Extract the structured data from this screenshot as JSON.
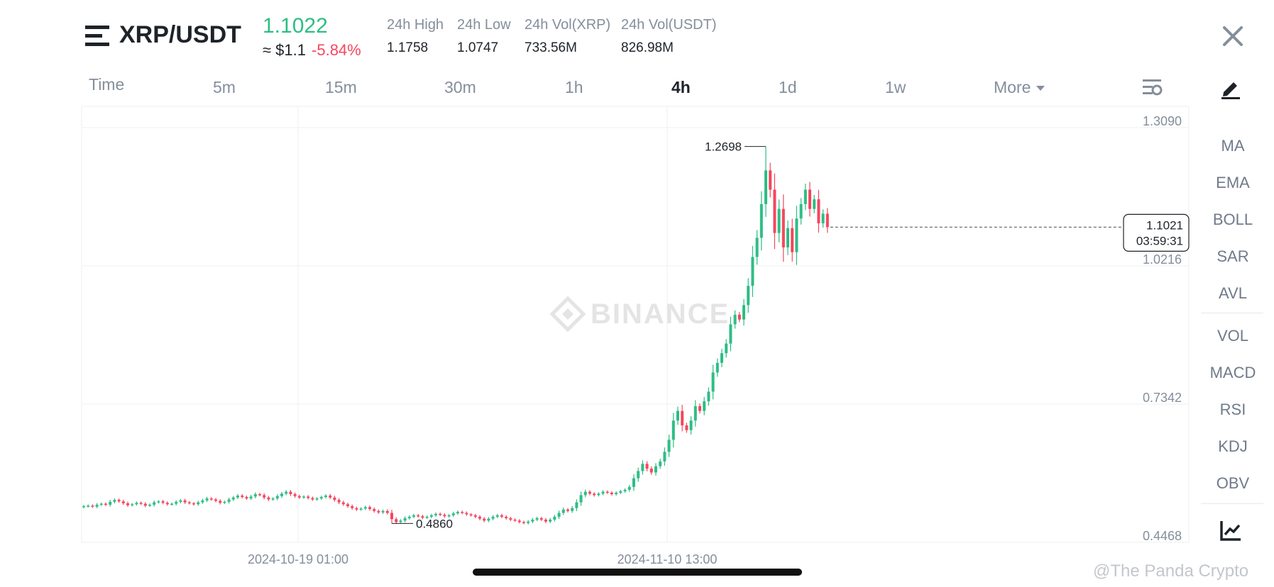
{
  "header": {
    "pair": "XRP/USDT",
    "last_price": "1.1022",
    "approx_usd": "≈ $1.1",
    "change_pct": "-5.84%",
    "stats": [
      {
        "label": "24h High",
        "value": "1.1758"
      },
      {
        "label": "24h Low",
        "value": "1.0747"
      },
      {
        "label": "24h Vol(XRP)",
        "value": "733.56M"
      },
      {
        "label": "24h Vol(USDT)",
        "value": "826.98M"
      }
    ]
  },
  "timeframes": [
    {
      "label": "Time",
      "active": false
    },
    {
      "label": "5m",
      "active": false
    },
    {
      "label": "15m",
      "active": false
    },
    {
      "label": "30m",
      "active": false
    },
    {
      "label": "1h",
      "active": false
    },
    {
      "label": "4h",
      "active": true
    },
    {
      "label": "1d",
      "active": false
    },
    {
      "label": "1w",
      "active": false
    },
    {
      "label": "More",
      "active": false
    }
  ],
  "indicators": {
    "main": [
      "MA",
      "EMA",
      "BOLL",
      "SAR",
      "AVL"
    ],
    "sub": [
      "VOL",
      "MACD",
      "RSI",
      "KDJ",
      "OBV"
    ]
  },
  "icons": {
    "menu": "menu-icon",
    "close": "close-icon",
    "settings": "chart-settings-icon",
    "draw": "drawing-tool-icon",
    "chart_type": "chart-type-icon",
    "watermark": "binance-logo-icon"
  },
  "colors": {
    "up": "#2ebd85",
    "down": "#f6465d",
    "grid": "#eef0f2",
    "text_muted": "#848e9c"
  },
  "chart_data": {
    "type": "candlestick",
    "interval": "4h",
    "y_ticks": [
      "1.3090",
      "1.0216",
      "0.7342",
      "0.4468"
    ],
    "x_ticks": [
      "2024-10-19 01:00",
      "2024-11-10 13:00"
    ],
    "ylim": [
      0.4468,
      1.309
    ],
    "high_marker": "1.2698",
    "low_marker": "0.4860",
    "current_price": "1.1021",
    "countdown": "03:59:31",
    "watermark": "BINANCE",
    "series_closes_approx": [
      0.522,
      0.523,
      0.521,
      0.525,
      0.527,
      0.525,
      0.531,
      0.535,
      0.532,
      0.528,
      0.524,
      0.526,
      0.529,
      0.527,
      0.523,
      0.525,
      0.53,
      0.532,
      0.529,
      0.526,
      0.527,
      0.531,
      0.534,
      0.53,
      0.528,
      0.526,
      0.53,
      0.534,
      0.538,
      0.536,
      0.533,
      0.529,
      0.531,
      0.536,
      0.54,
      0.544,
      0.541,
      0.538,
      0.542,
      0.547,
      0.545,
      0.54,
      0.536,
      0.538,
      0.543,
      0.548,
      0.552,
      0.547,
      0.543,
      0.54,
      0.542,
      0.539,
      0.536,
      0.538,
      0.541,
      0.544,
      0.54,
      0.535,
      0.53,
      0.526,
      0.522,
      0.518,
      0.515,
      0.517,
      0.52,
      0.516,
      0.512,
      0.509,
      0.512,
      0.508,
      0.495,
      0.489,
      0.492,
      0.497,
      0.5,
      0.503,
      0.501,
      0.498,
      0.5,
      0.503,
      0.506,
      0.504,
      0.501,
      0.503,
      0.507,
      0.51,
      0.508,
      0.505,
      0.503,
      0.5,
      0.496,
      0.492,
      0.496,
      0.5,
      0.503,
      0.5,
      0.497,
      0.494,
      0.492,
      0.489,
      0.487,
      0.49,
      0.494,
      0.497,
      0.494,
      0.49,
      0.494,
      0.5,
      0.508,
      0.515,
      0.512,
      0.518,
      0.53,
      0.545,
      0.552,
      0.548,
      0.545,
      0.548,
      0.552,
      0.55,
      0.547,
      0.55,
      0.553,
      0.556,
      0.562,
      0.58,
      0.595,
      0.61,
      0.6,
      0.592,
      0.605,
      0.615,
      0.635,
      0.66,
      0.7,
      0.72,
      0.69,
      0.68,
      0.7,
      0.73,
      0.72,
      0.74,
      0.76,
      0.8,
      0.82,
      0.84,
      0.86,
      0.9,
      0.92,
      0.91,
      0.94,
      0.98,
      1.04,
      1.08,
      1.15,
      1.22,
      1.18,
      1.09,
      1.14,
      1.06,
      1.1,
      1.05,
      1.12,
      1.15,
      1.18,
      1.14,
      1.16,
      1.11,
      1.13,
      1.102
    ]
  },
  "footer": {
    "credit": "@The Panda Crypto"
  }
}
